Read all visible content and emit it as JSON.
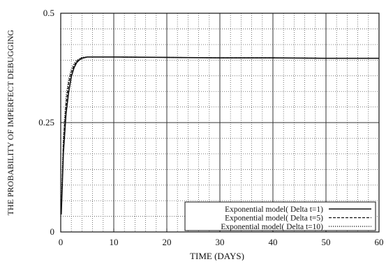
{
  "chart_data": {
    "type": "line",
    "xlabel": "TIME (DAYS)",
    "ylabel": "THE PROBABILITY OF IMPERFECT DEBUGGING",
    "xlim": [
      0,
      60
    ],
    "ylim": [
      0,
      0.5
    ],
    "x_ticks": [
      0,
      10,
      20,
      30,
      40,
      50,
      60
    ],
    "x_tick_labels": [
      "0",
      "10",
      "20",
      "30",
      "40",
      "50",
      "60"
    ],
    "y_ticks": [
      0,
      0.25,
      0.5
    ],
    "y_tick_labels": [
      "0",
      "0.25",
      "0.5"
    ],
    "minor_grid": {
      "x_step": 2,
      "y_step": 0.0357,
      "style": "dotted"
    },
    "major_grid": {
      "x": [
        10,
        20,
        30,
        40,
        50
      ],
      "y": [
        0.25
      ],
      "style": "solid"
    },
    "grid": true,
    "legend_position": "bottom-right",
    "series": [
      {
        "name": "Exponential model( Delta t=1)",
        "style": "solid",
        "x": [
          0.1,
          0.5,
          1,
          1.5,
          2,
          2.5,
          3,
          3.5,
          4,
          5,
          6,
          8,
          10,
          20,
          30,
          40,
          50,
          60
        ],
        "y": [
          0.04,
          0.18,
          0.27,
          0.32,
          0.355,
          0.375,
          0.387,
          0.393,
          0.397,
          0.4,
          0.4,
          0.4,
          0.4,
          0.399,
          0.398,
          0.398,
          0.397,
          0.397
        ]
      },
      {
        "name": "Exponential model( Delta t=5)",
        "style": "dashed",
        "x": [
          0.1,
          0.5,
          1,
          1.5,
          2,
          2.5,
          3,
          3.5,
          4,
          5,
          6,
          8,
          10,
          20,
          30,
          40,
          50,
          60
        ],
        "y": [
          0.05,
          0.2,
          0.29,
          0.34,
          0.365,
          0.38,
          0.39,
          0.395,
          0.398,
          0.4,
          0.4,
          0.4,
          0.4,
          0.399,
          0.398,
          0.398,
          0.397,
          0.397
        ]
      },
      {
        "name": "Exponential model( Delta t=10)",
        "style": "dotted",
        "x": [
          0.1,
          0.5,
          1,
          1.5,
          2,
          2.5,
          3,
          3.5,
          4,
          5,
          6,
          8,
          10,
          20,
          30,
          40,
          50,
          60
        ],
        "y": [
          0.06,
          0.22,
          0.31,
          0.35,
          0.372,
          0.385,
          0.392,
          0.396,
          0.399,
          0.4,
          0.4,
          0.4,
          0.4,
          0.399,
          0.398,
          0.398,
          0.397,
          0.397
        ]
      }
    ]
  }
}
